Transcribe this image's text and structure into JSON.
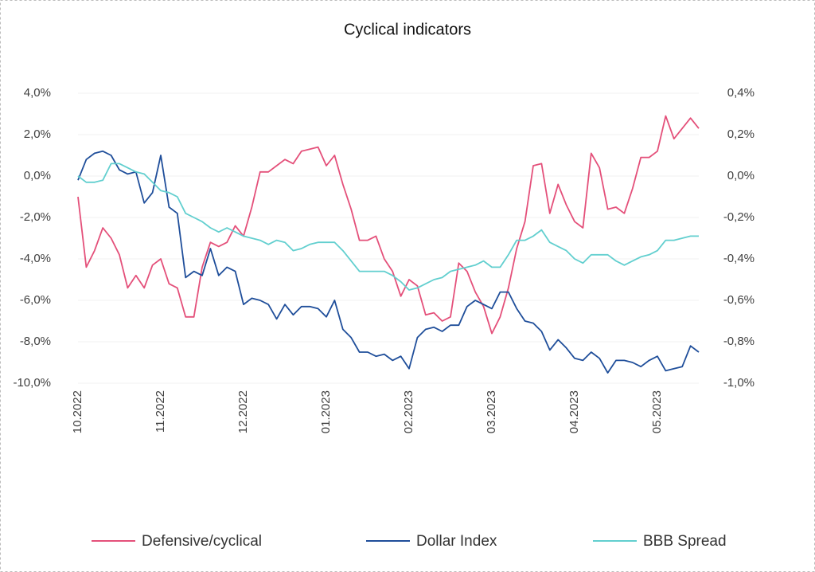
{
  "chart_data": {
    "type": "line",
    "title": "Cyclical indicators",
    "categories": [
      "10.2022",
      null,
      null,
      null,
      null,
      null,
      null,
      null,
      null,
      null,
      "11.2022",
      null,
      null,
      null,
      null,
      null,
      null,
      null,
      null,
      null,
      "12.2022",
      null,
      null,
      null,
      null,
      null,
      null,
      null,
      null,
      null,
      "01.2023",
      null,
      null,
      null,
      null,
      null,
      null,
      null,
      null,
      null,
      "02.2023",
      null,
      null,
      null,
      null,
      null,
      null,
      null,
      null,
      null,
      "03.2023",
      null,
      null,
      null,
      null,
      null,
      null,
      null,
      null,
      null,
      "04.2023",
      null,
      null,
      null,
      null,
      null,
      null,
      null,
      null,
      null,
      "05.2023",
      null,
      null,
      null,
      null,
      null
    ],
    "series": [
      {
        "name": "Defensive/cyclical",
        "color": "#e4507a",
        "axis": "y",
        "values": [
          -1.0,
          -4.4,
          -3.6,
          -2.5,
          -3.0,
          -3.8,
          -5.4,
          -4.8,
          -5.4,
          -4.3,
          -4.0,
          -5.2,
          -5.4,
          -6.8,
          -6.8,
          -4.4,
          -3.2,
          -3.4,
          -3.2,
          -2.4,
          -2.9,
          -1.5,
          0.2,
          0.2,
          0.5,
          0.8,
          0.6,
          1.2,
          1.3,
          1.4,
          0.5,
          1.0,
          -0.4,
          -1.6,
          -3.1,
          -3.1,
          -2.9,
          -4.0,
          -4.6,
          -5.8,
          -5.0,
          -5.3,
          -6.7,
          -6.6,
          -7.0,
          -6.8,
          -4.2,
          -4.6,
          -5.6,
          -6.3,
          -7.6,
          -6.8,
          -5.4,
          -3.5,
          -2.2,
          0.5,
          0.6,
          -1.8,
          -0.4,
          -1.4,
          -2.2,
          -2.5,
          1.1,
          0.4,
          -1.6,
          -1.5,
          -1.8,
          -0.6,
          0.9,
          0.9,
          1.2,
          2.9,
          1.8,
          2.3,
          2.8,
          2.3
        ]
      },
      {
        "name": "Dollar Index",
        "color": "#1f4e9a",
        "axis": "y2",
        "values": [
          -0.02,
          0.08,
          0.11,
          0.12,
          0.1,
          0.03,
          0.01,
          0.02,
          -0.13,
          -0.08,
          0.1,
          -0.15,
          -0.18,
          -0.49,
          -0.46,
          -0.48,
          -0.35,
          -0.48,
          -0.44,
          -0.46,
          -0.62,
          -0.59,
          -0.6,
          -0.62,
          -0.69,
          -0.62,
          -0.67,
          -0.63,
          -0.63,
          -0.64,
          -0.68,
          -0.6,
          -0.74,
          -0.78,
          -0.85,
          -0.85,
          -0.87,
          -0.86,
          -0.89,
          -0.87,
          -0.93,
          -0.78,
          -0.74,
          -0.73,
          -0.75,
          -0.72,
          -0.72,
          -0.63,
          -0.6,
          -0.62,
          -0.64,
          -0.56,
          -0.56,
          -0.64,
          -0.7,
          -0.71,
          -0.75,
          -0.84,
          -0.79,
          -0.83,
          -0.88,
          -0.89,
          -0.85,
          -0.88,
          -0.95,
          -0.89,
          -0.89,
          -0.9,
          -0.92,
          -0.89,
          -0.87,
          -0.94,
          -0.93,
          -0.92,
          -0.82,
          -0.85
        ]
      },
      {
        "name": "BBB Spread",
        "color": "#62cfcf",
        "axis": "y2",
        "values": [
          0.0,
          -0.03,
          -0.03,
          -0.02,
          0.06,
          0.06,
          0.04,
          0.02,
          0.01,
          -0.03,
          -0.07,
          -0.08,
          -0.1,
          -0.18,
          -0.2,
          -0.22,
          -0.25,
          -0.27,
          -0.25,
          -0.27,
          -0.29,
          -0.3,
          -0.31,
          -0.33,
          -0.31,
          -0.32,
          -0.36,
          -0.35,
          -0.33,
          -0.32,
          -0.32,
          -0.32,
          -0.36,
          -0.41,
          -0.46,
          -0.46,
          -0.46,
          -0.46,
          -0.48,
          -0.51,
          -0.55,
          -0.54,
          -0.52,
          -0.5,
          -0.49,
          -0.46,
          -0.45,
          -0.44,
          -0.43,
          -0.41,
          -0.44,
          -0.44,
          -0.38,
          -0.31,
          -0.31,
          -0.29,
          -0.26,
          -0.32,
          -0.34,
          -0.36,
          -0.4,
          -0.42,
          -0.38,
          -0.38,
          -0.38,
          -0.41,
          -0.43,
          -0.41,
          -0.39,
          -0.38,
          -0.36,
          -0.31,
          -0.31,
          -0.3,
          -0.29,
          -0.29
        ]
      }
    ],
    "ylim": [
      -10,
      4
    ],
    "yticks": [
      {
        "value": 4,
        "label": "4,0%"
      },
      {
        "value": 2,
        "label": "2,0%"
      },
      {
        "value": 0,
        "label": "0,0%"
      },
      {
        "value": -2,
        "label": "-2,0%"
      },
      {
        "value": -4,
        "label": "-4,0%"
      },
      {
        "value": -6,
        "label": "-6,0%"
      },
      {
        "value": -8,
        "label": "-8,0%"
      },
      {
        "value": -10,
        "label": "-10,0%"
      }
    ],
    "y2lim": [
      -1.0,
      0.4
    ],
    "y2ticks": [
      {
        "value": 0.4,
        "label": "0,4%"
      },
      {
        "value": 0.2,
        "label": "0,2%"
      },
      {
        "value": 0,
        "label": "0,0%"
      },
      {
        "value": -0.2,
        "label": "-0,2%"
      },
      {
        "value": -0.4,
        "label": "-0,4%"
      },
      {
        "value": -0.6,
        "label": "-0,6%"
      },
      {
        "value": -0.8,
        "label": "-0,8%"
      },
      {
        "value": -1.0,
        "label": "-1,0%"
      }
    ],
    "grid": true,
    "legend": "bottom"
  }
}
